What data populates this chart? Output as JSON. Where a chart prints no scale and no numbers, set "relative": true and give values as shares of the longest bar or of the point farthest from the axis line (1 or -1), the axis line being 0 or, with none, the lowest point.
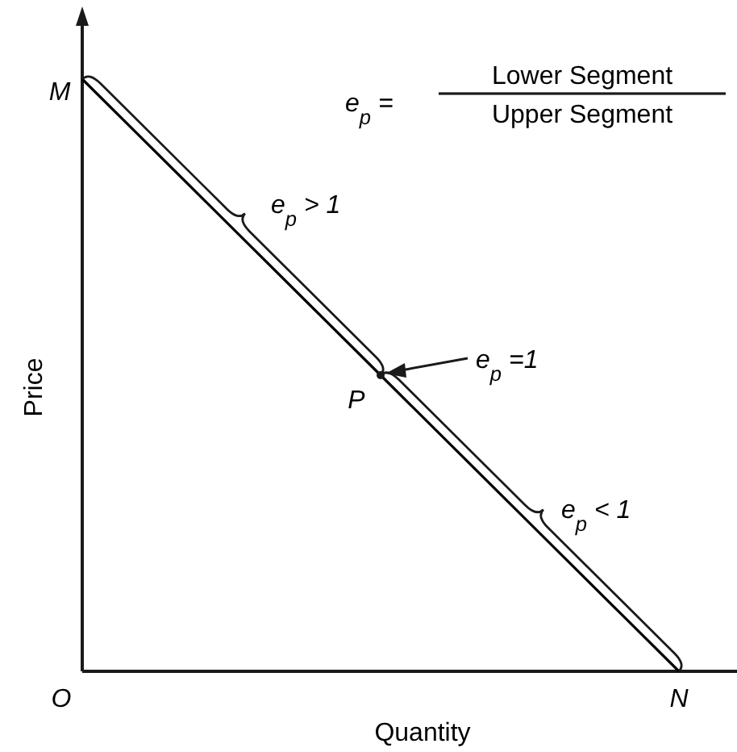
{
  "chart_data": {
    "type": "line",
    "relative": true,
    "xlabel": "Quantity",
    "ylabel": "Price",
    "categories": [
      null,
      null,
      null
    ],
    "values": [
      1,
      0.5,
      0
    ],
    "color": "#000000",
    "marker": "none",
    "line_style": "solid",
    "annotations": [
      "M",
      "O",
      "N",
      "P",
      "e$_{p}$ =",
      "Lower Segment",
      "Upper Segment",
      "e$_{p}$ > 1",
      "e$_{p}$ =1",
      "e$_{p}$ < 1"
    ]
  }
}
